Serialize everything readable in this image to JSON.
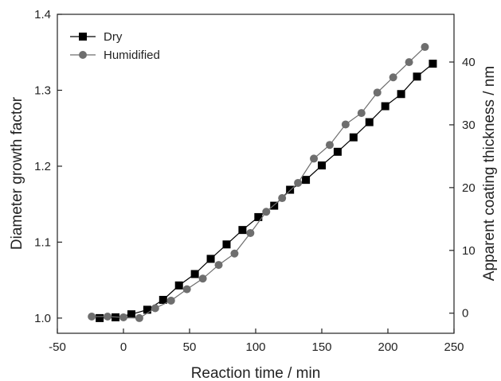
{
  "chart_data": {
    "type": "line",
    "xlabel": "Reaction time / min",
    "ylabel": "Diameter growth factor",
    "y2label": "Apparent coating thickness / nm",
    "xlim": [
      -50,
      250
    ],
    "ylim": [
      0.98,
      1.4
    ],
    "y2lim": [
      -3.2,
      47.6
    ],
    "x_ticks": [
      -50,
      0,
      50,
      100,
      150,
      200,
      250
    ],
    "y_ticks": [
      1.0,
      1.1,
      1.2,
      1.3,
      1.4
    ],
    "y2_ticks": [
      0,
      10,
      20,
      30,
      40
    ],
    "grid": false,
    "legend_position": "top-left",
    "series": [
      {
        "name": "Dry",
        "marker": "square",
        "color": "#000000",
        "x": [
          -18,
          -6,
          6,
          18,
          30,
          42,
          54,
          66,
          78,
          90,
          102,
          114,
          126,
          138,
          150,
          162,
          174,
          186,
          198,
          210,
          222,
          234
        ],
        "y": [
          1.0,
          1.001,
          1.005,
          1.011,
          1.024,
          1.043,
          1.058,
          1.078,
          1.097,
          1.116,
          1.133,
          1.148,
          1.169,
          1.182,
          1.201,
          1.219,
          1.238,
          1.258,
          1.279,
          1.295,
          1.318,
          1.335
        ]
      },
      {
        "name": "Humidified",
        "marker": "circle",
        "color": "#6e6e6e",
        "x": [
          -24,
          -12,
          0,
          12,
          24,
          36,
          48,
          60,
          72,
          84,
          96,
          108,
          120,
          132,
          144,
          156,
          168,
          180,
          192,
          204,
          216,
          228
        ],
        "y": [
          1.002,
          1.002,
          1.001,
          1.0,
          1.013,
          1.023,
          1.038,
          1.052,
          1.07,
          1.085,
          1.112,
          1.14,
          1.158,
          1.178,
          1.21,
          1.228,
          1.255,
          1.27,
          1.297,
          1.317,
          1.337,
          1.357
        ]
      }
    ]
  }
}
